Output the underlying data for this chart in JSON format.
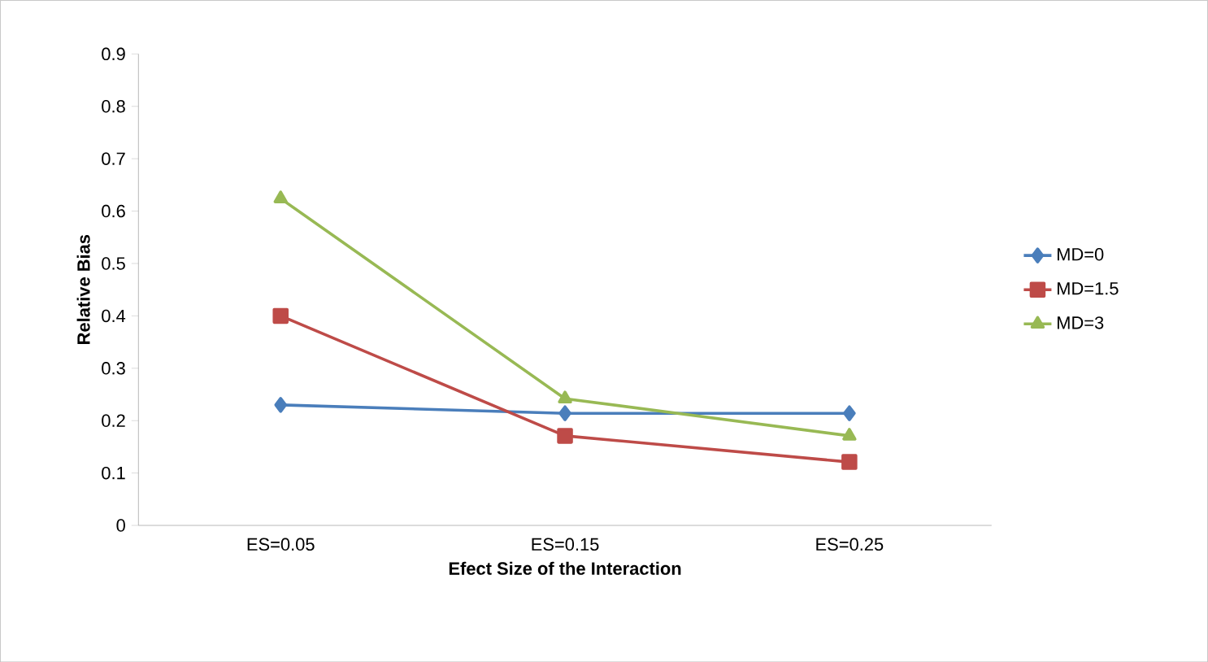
{
  "chart_data": {
    "type": "line",
    "xlabel": "Efect Size of the Interaction",
    "ylabel": "Relative Bias",
    "categories": [
      "ES=0.05",
      "ES=0.15",
      "ES=0.25"
    ],
    "series": [
      {
        "name": "MD=0",
        "color": "#4a7ebb",
        "marker": "diamond",
        "values": [
          0.23,
          0.214,
          0.214
        ]
      },
      {
        "name": "MD=1.5",
        "color": "#be4b48",
        "marker": "square",
        "values": [
          0.4,
          0.171,
          0.121
        ]
      },
      {
        "name": "MD=3",
        "color": "#98b954",
        "marker": "triangle",
        "values": [
          0.624,
          0.242,
          0.171
        ]
      }
    ],
    "ylim": [
      0,
      0.9
    ],
    "yticks": [
      0,
      0.1,
      0.2,
      0.3,
      0.4,
      0.5,
      0.6,
      0.7,
      0.8,
      0.9
    ],
    "legend": "right",
    "grid": false
  }
}
